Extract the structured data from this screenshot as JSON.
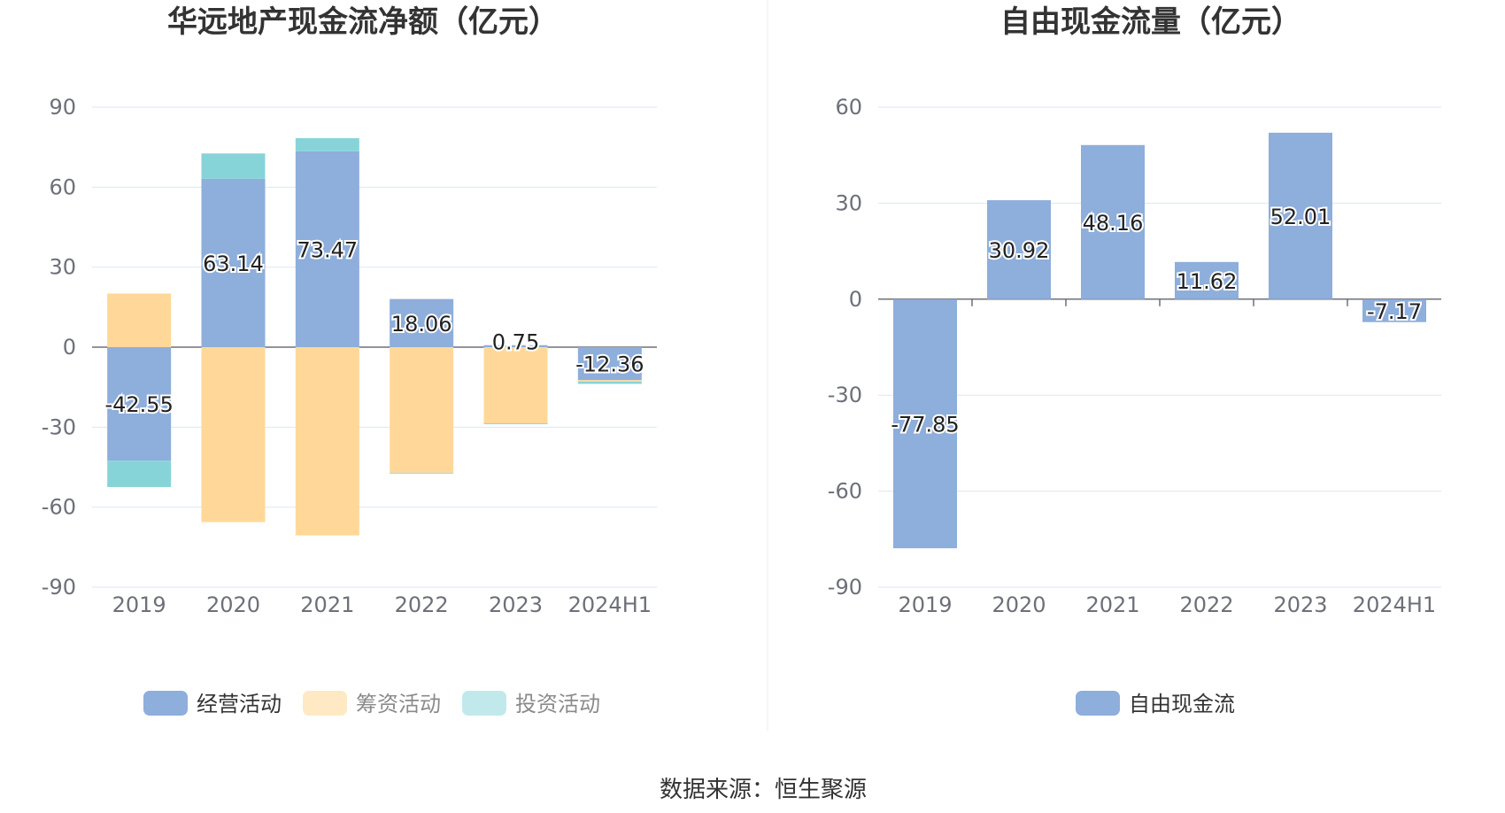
{
  "source_label": "数据来源：恒生聚源",
  "chart_data": [
    {
      "type": "bar",
      "stacked": true,
      "title": "华远地产现金流净额（亿元）",
      "categories": [
        "2019",
        "2020",
        "2021",
        "2022",
        "2023",
        "2024H1"
      ],
      "ylim": [
        -90,
        90
      ],
      "yticks": [
        90,
        60,
        30,
        0,
        -30,
        -60,
        -90
      ],
      "grid": true,
      "legend_position": "bottom",
      "series": [
        {
          "name": "经营活动",
          "color": "#8eaedb",
          "values": [
            -42.55,
            63.14,
            73.47,
            18.06,
            0.75,
            -12.36
          ],
          "labels": [
            "-42.55",
            "63.14",
            "73.47",
            "18.06",
            "0.75",
            "-12.36"
          ]
        },
        {
          "name": "筹资活动",
          "color": "#ffd899",
          "values": [
            20.1,
            -65.6,
            -70.6,
            -47.1,
            -28.6,
            -0.6
          ]
        },
        {
          "name": "投资活动",
          "color": "#87d4d8",
          "values": [
            -9.9,
            9.5,
            4.9,
            -0.3,
            -0.3,
            -0.8
          ]
        }
      ],
      "legend_colors": [
        "#8eaedb",
        "#ffe9c4",
        "#c1e9ec"
      ]
    },
    {
      "type": "bar",
      "title": "自由现金流量（亿元）",
      "categories": [
        "2019",
        "2020",
        "2021",
        "2022",
        "2023",
        "2024H1"
      ],
      "ylim": [
        -90,
        60
      ],
      "yticks": [
        60,
        30,
        0,
        -30,
        -60,
        -90
      ],
      "grid": true,
      "legend_position": "bottom",
      "series": [
        {
          "name": "自由现金流",
          "color": "#8eaedb",
          "values": [
            -77.85,
            30.92,
            48.16,
            11.62,
            52.01,
            -7.17
          ],
          "labels": [
            "-77.85",
            "30.92",
            "48.16",
            "11.62",
            "52.01",
            "-7.17"
          ]
        }
      ],
      "legend_colors": [
        "#8eaedb"
      ]
    }
  ]
}
